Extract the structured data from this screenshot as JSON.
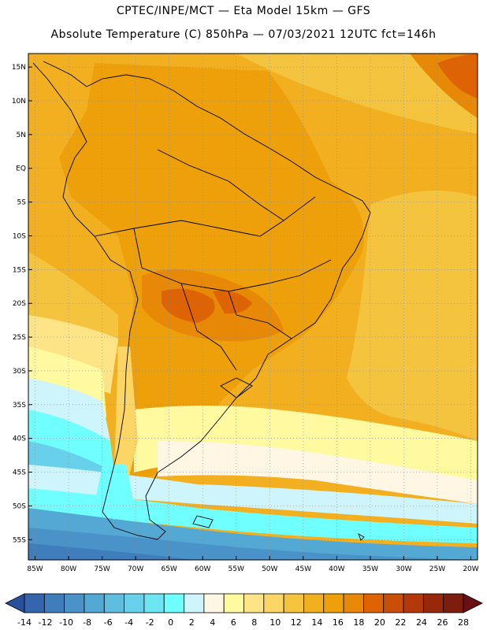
{
  "header": {
    "line1": "CPTEC/INPE/MCT —  Eta Model 15km — GFS",
    "line2": "Absolute Temperature (C) 850hPa — 07/03/2021 12UTC fct=146h"
  },
  "map": {
    "lat_labels": [
      "15N",
      "10N",
      "5N",
      "EQ",
      "5S",
      "10S",
      "15S",
      "20S",
      "25S",
      "30S",
      "35S",
      "40S",
      "45S",
      "50S",
      "55S"
    ],
    "lon_labels": [
      "85W",
      "80W",
      "75W",
      "70W",
      "65W",
      "60W",
      "55W",
      "50W",
      "45W",
      "40W",
      "35W",
      "30W",
      "25W",
      "20W"
    ],
    "lon_extent": [
      -86,
      -19
    ],
    "lat_extent": [
      -58,
      17
    ]
  },
  "colorbar": {
    "colors": [
      "#2a4f9c",
      "#3566ad",
      "#3f7dbd",
      "#4a93c9",
      "#54a8d4",
      "#5fbddf",
      "#68d0ea",
      "#6ee6f2",
      "#70ffff",
      "#cdf5fb",
      "#fff6e4",
      "#fffaa0",
      "#fde486",
      "#fbd565",
      "#f5c43f",
      "#f2b020",
      "#eea00b",
      "#e78806",
      "#dd6304",
      "#c94e07",
      "#b3390a",
      "#98280c",
      "#7c1d0d",
      "#6a0f14"
    ],
    "labels": [
      "-14",
      "-12",
      "-10",
      "-8",
      "-6",
      "-4",
      "-2",
      "0",
      "2",
      "4",
      "6",
      "8",
      "10",
      "12",
      "14",
      "16",
      "18",
      "20",
      "22",
      "24",
      "26",
      "28"
    ]
  }
}
